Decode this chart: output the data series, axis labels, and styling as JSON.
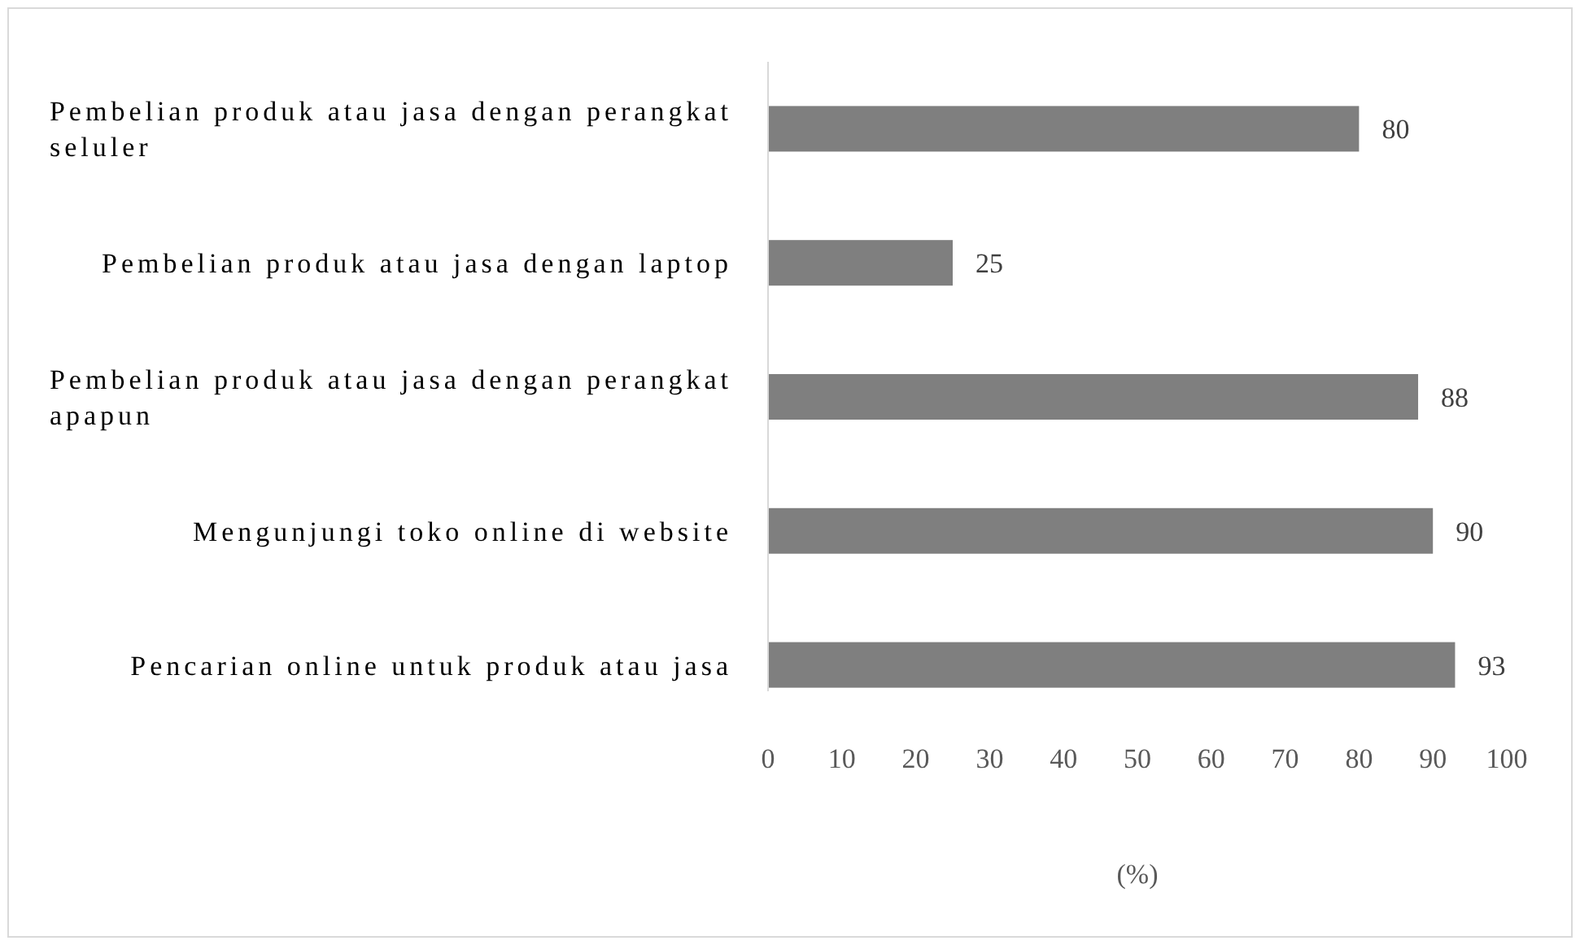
{
  "chart_data": {
    "type": "bar",
    "orientation": "horizontal",
    "categories": [
      "Pembelian produk atau jasa dengan perangkat seluler",
      "Pembelian produk atau jasa dengan laptop",
      "Pembelian produk atau jasa dengan perangkat apapun",
      "Mengunjungi toko online di website",
      "Pencarian online untuk produk atau jasa"
    ],
    "values": [
      80,
      25,
      88,
      90,
      93
    ],
    "color": "#7f7f7f",
    "xlabel": "(%)",
    "xlim": [
      0,
      100
    ],
    "xticks": [
      0,
      10,
      20,
      30,
      40,
      50,
      60,
      70,
      80,
      90,
      100
    ],
    "data_labels": true,
    "grid": false
  }
}
